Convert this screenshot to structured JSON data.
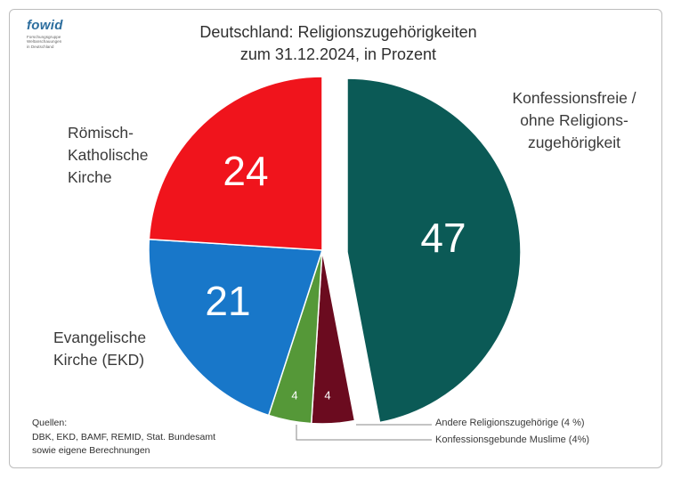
{
  "logo": {
    "word": "fowid",
    "subtitle_lines": [
      "Forschungsgruppe",
      "Weltanschauungen",
      "in Deutschland"
    ]
  },
  "header": {
    "title_line1": "Deutschland: Religionszugehörigkeiten",
    "title_line2": "zum 31.12.2024, in Prozent"
  },
  "labels": {
    "catholic": [
      "Römisch-",
      "Katholische",
      "Kirche"
    ],
    "protestant": [
      "Evangelische",
      "Kirche (EKD)"
    ],
    "none": [
      "Konfessionsfreie /",
      "ohne Religions-",
      "zugehörigkeit"
    ]
  },
  "legend": {
    "other_religions": "Andere Religionszugehörige (4 %)",
    "muslims": "Konfessionsgebunde Muslime (4%)"
  },
  "sources": {
    "heading": "Quellen:",
    "line1": "DBK, EKD, BAMF, REMID, Stat. Bundesamt",
    "line2": "sowie eigene Berechnungen"
  },
  "colors": {
    "none": "#0b5a56",
    "other": "#6b0b1f",
    "muslim": "#559838",
    "protestant": "#1877c9",
    "catholic": "#f0141c"
  },
  "chart_data": {
    "type": "pie",
    "title": "Deutschland: Religionszugehörigkeiten zum 31.12.2024, in Prozent",
    "slices": [
      {
        "key": "none",
        "label": "Konfessionsfreie / ohne Religionszugehörigkeit",
        "value": 47,
        "data_label": "47",
        "exploded": true
      },
      {
        "key": "other",
        "label": "Andere Religionszugehörige (4 %)",
        "value": 4,
        "data_label": "4"
      },
      {
        "key": "muslim",
        "label": "Konfessionsgebunde Muslime (4%)",
        "value": 4,
        "data_label": "4"
      },
      {
        "key": "protestant",
        "label": "Evangelische Kirche (EKD)",
        "value": 21,
        "data_label": "21"
      },
      {
        "key": "catholic",
        "label": "Römisch-Katholische Kirche",
        "value": 24,
        "data_label": "24"
      }
    ]
  }
}
